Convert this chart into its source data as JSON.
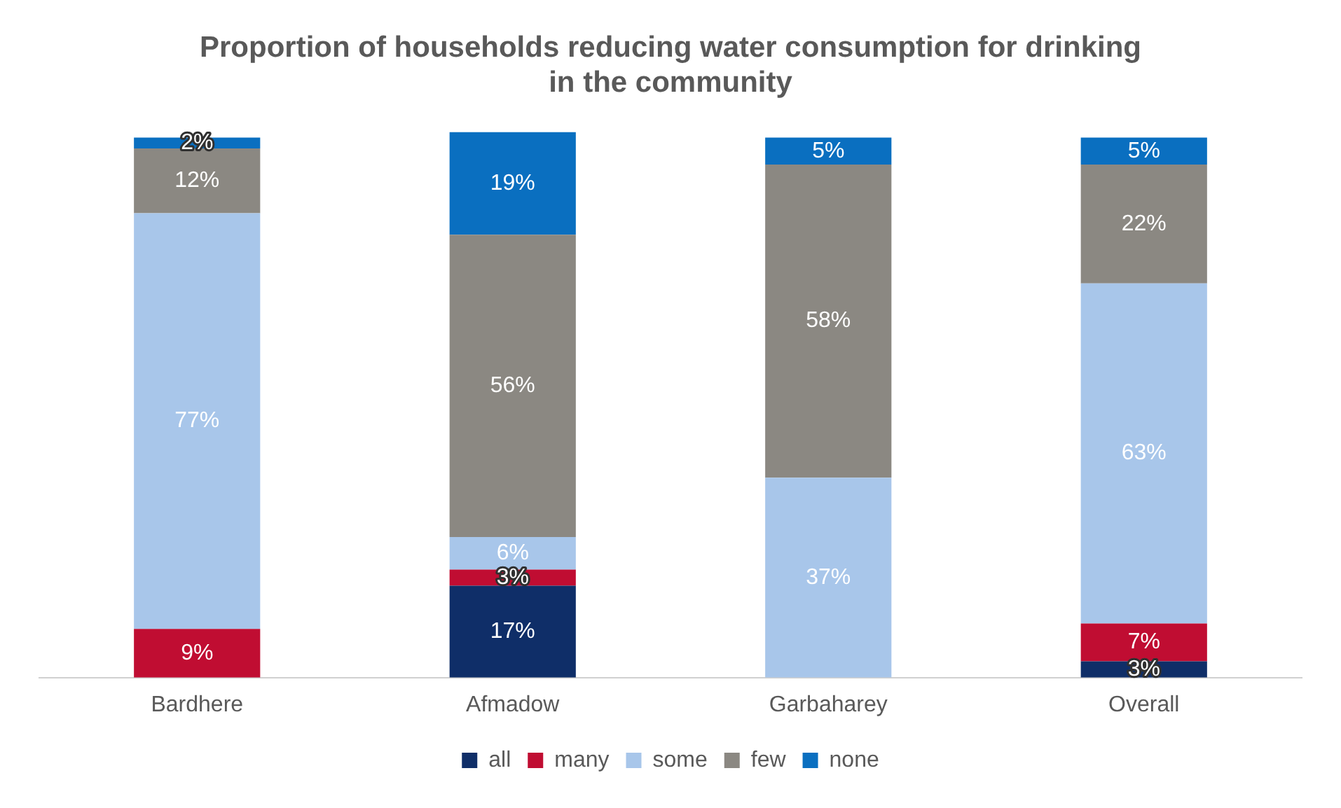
{
  "chart_data": {
    "type": "bar",
    "title": "Proportion of households reducing water consumption for drinking in the community",
    "categories": [
      "Bardhere",
      "Afmadow",
      "Garbaharey",
      "Overall"
    ],
    "stacked": true,
    "legend": "bottom",
    "grid": false,
    "series": [
      {
        "name": "all",
        "color": "#0f2e68",
        "values": [
          null,
          17,
          null,
          3
        ],
        "value_labels": [
          null,
          "17%",
          null,
          "3%"
        ]
      },
      {
        "name": "many",
        "color": "#c00d32",
        "values": [
          9,
          3,
          null,
          7
        ],
        "value_labels": [
          "9%",
          "3%",
          null,
          "7%"
        ]
      },
      {
        "name": "some",
        "color": "#a8c6ea",
        "values": [
          77,
          6,
          37,
          63
        ],
        "value_labels": [
          "77%",
          "6%",
          "37%",
          "63%"
        ]
      },
      {
        "name": "few",
        "color": "#8b8882",
        "values": [
          12,
          56,
          58,
          22
        ],
        "value_labels": [
          "12%",
          "56%",
          "58%",
          "22%"
        ]
      },
      {
        "name": "none",
        "color": "#0a6fc0",
        "values": [
          2,
          19,
          5,
          5
        ],
        "value_labels": [
          "2%",
          "19%",
          "5%",
          "5%"
        ]
      }
    ]
  }
}
